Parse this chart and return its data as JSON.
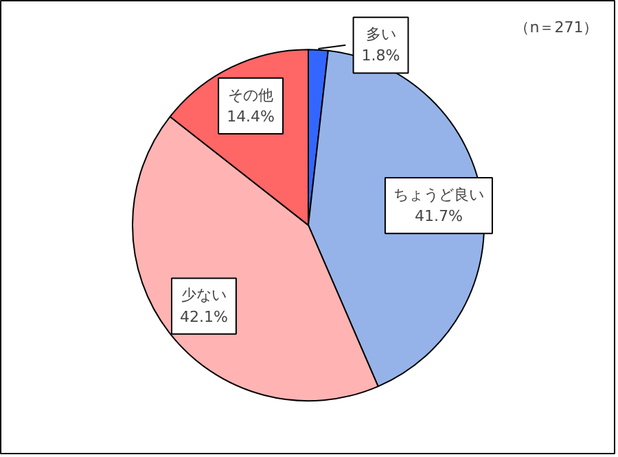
{
  "chart_data": {
    "type": "pie",
    "categories": [
      "多い",
      "ちょうど良い",
      "少ない",
      "その他"
    ],
    "values": [
      1.8,
      41.7,
      42.1,
      14.4
    ],
    "colors": [
      "#3366ff",
      "#95b3e8",
      "#ffb3b3",
      "#ff6666"
    ],
    "value_labels": [
      "1.8%",
      "41.7%",
      "42.1%",
      "14.4%"
    ],
    "annotations": [
      "（n＝271）"
    ]
  }
}
